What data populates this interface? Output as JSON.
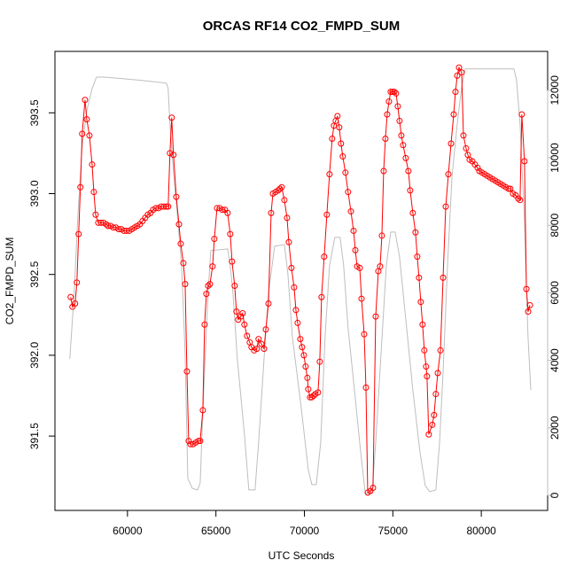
{
  "chart_data": {
    "type": "line",
    "title": "ORCAS RF14 CO2_FMPD_SUM",
    "x_label": "UTC Seconds",
    "y_label": "CO2_FMPD_SUM",
    "xlim": [
      55900,
      83750
    ],
    "xticks": [
      60000,
      65000,
      70000,
      75000,
      80000
    ],
    "ylim": [
      391.04,
      393.88
    ],
    "yticks": [
      391.5,
      {
        "value": 392,
        "label": "392.0"
      },
      392.5,
      {
        "value": 393,
        "label": "393.0"
      },
      393.5
    ],
    "y2lim": [
      -446,
      13150
    ],
    "y2ticks": [
      0,
      2000,
      4000,
      6000,
      8000,
      10000,
      12000
    ],
    "series": [
      {
        "color": "#bebebe",
        "axis": "y2",
        "markers": false,
        "x": [
          56740,
          56990,
          57190,
          57440,
          57700,
          58000,
          58250,
          58700,
          59800,
          60800,
          62200,
          62300,
          62400,
          62600,
          62810,
          63060,
          63260,
          63410,
          63660,
          63960,
          64110,
          64310,
          64560,
          64710,
          65660,
          65810,
          65960,
          66210,
          66610,
          66860,
          67210,
          67410,
          67670,
          67970,
          68320,
          68870,
          69070,
          69320,
          69820,
          70220,
          70420,
          70670,
          70920,
          71170,
          71420,
          71720,
          72020,
          72220,
          72470,
          72830,
          73180,
          73430,
          73580,
          73830,
          74030,
          74330,
          74630,
          74880,
          75130,
          75380,
          75730,
          76130,
          76530,
          76830,
          77080,
          77430,
          77640,
          77840,
          78090,
          78340,
          78640,
          78890,
          79090,
          81840,
          81990,
          82190,
          82440,
          82640,
          82800
        ],
        "values": [
          4040,
          6010,
          8240,
          10340,
          11390,
          12050,
          12390,
          12390,
          12340,
          12290,
          12210,
          12050,
          11000,
          9560,
          8370,
          6800,
          4170,
          500,
          210,
          160,
          370,
          3120,
          6010,
          7250,
          7300,
          6800,
          6010,
          4040,
          1810,
          160,
          160,
          1550,
          3650,
          6010,
          7380,
          7430,
          6540,
          4700,
          2600,
          760,
          320,
          320,
          1550,
          4700,
          6800,
          7640,
          7640,
          6800,
          4960,
          3120,
          1290,
          110,
          0,
          110,
          1550,
          4170,
          6800,
          7800,
          7800,
          7060,
          5220,
          3120,
          1290,
          290,
          110,
          160,
          1550,
          3650,
          6800,
          9420,
          11000,
          12100,
          12630,
          12630,
          12310,
          11000,
          8110,
          4700,
          3120
        ]
      },
      {
        "color": "#ff0000",
        "axis": "y",
        "markers": true,
        "x": [
          56790,
          56890,
          57040,
          57140,
          57240,
          57340,
          57440,
          57600,
          57700,
          57850,
          58000,
          58100,
          58200,
          58350,
          58500,
          58650,
          58800,
          58900,
          59050,
          59200,
          59350,
          59500,
          59650,
          59800,
          59950,
          60100,
          60250,
          60400,
          60550,
          60700,
          60850,
          61000,
          61150,
          61300,
          61450,
          61600,
          61750,
          61900,
          62050,
          62200,
          62300,
          62400,
          62500,
          62600,
          62760,
          62910,
          63010,
          63160,
          63260,
          63360,
          63460,
          63560,
          63710,
          63860,
          64010,
          64110,
          64260,
          64360,
          64460,
          64560,
          64660,
          64810,
          64910,
          65060,
          65210,
          65360,
          65510,
          65660,
          65810,
          65910,
          66060,
          66160,
          66260,
          66410,
          66510,
          66610,
          66760,
          66910,
          67010,
          67160,
          67310,
          67410,
          67570,
          67720,
          67820,
          67970,
          68120,
          68220,
          68370,
          68520,
          68620,
          68720,
          68870,
          69020,
          69120,
          69270,
          69420,
          69520,
          69620,
          69770,
          69870,
          69970,
          70070,
          70170,
          70220,
          70320,
          70420,
          70520,
          70620,
          70770,
          70870,
          70970,
          71120,
          71270,
          71420,
          71570,
          71670,
          71770,
          71870,
          71970,
          72070,
          72170,
          72320,
          72470,
          72630,
          72780,
          72880,
          72980,
          73130,
          73230,
          73380,
          73480,
          73580,
          73730,
          73880,
          74030,
          74180,
          74280,
          74380,
          74480,
          74580,
          74680,
          74780,
          74880,
          74980,
          75080,
          75180,
          75280,
          75380,
          75480,
          75580,
          75730,
          75880,
          75980,
          76130,
          76280,
          76380,
          76480,
          76580,
          76680,
          76780,
          76880,
          76930,
          77030,
          77230,
          77330,
          77430,
          77540,
          77690,
          77840,
          77990,
          78140,
          78290,
          78440,
          78540,
          78640,
          78740,
          78890,
          78990,
          79140,
          79240,
          79340,
          79490,
          79640,
          79790,
          79890,
          80040,
          80190,
          80340,
          80490,
          80640,
          80790,
          80940,
          81090,
          81240,
          81390,
          81540,
          81640,
          81790,
          81940,
          82090,
          82190,
          82290,
          82440,
          82550,
          82650,
          82750
        ],
        "values": [
          392.36,
          392.3,
          392.32,
          392.45,
          392.75,
          393.04,
          393.37,
          393.58,
          393.46,
          393.36,
          393.18,
          393.01,
          392.87,
          392.82,
          392.82,
          392.82,
          392.81,
          392.8,
          392.8,
          392.79,
          392.79,
          392.78,
          392.78,
          392.77,
          392.77,
          392.77,
          392.78,
          392.79,
          392.8,
          392.81,
          392.83,
          392.85,
          392.87,
          392.88,
          392.9,
          392.91,
          392.91,
          392.92,
          392.92,
          392.92,
          392.92,
          393.25,
          393.47,
          393.24,
          392.98,
          392.81,
          392.69,
          392.57,
          392.44,
          391.9,
          391.47,
          391.45,
          391.45,
          391.46,
          391.47,
          391.47,
          391.66,
          392.19,
          392.38,
          392.43,
          392.44,
          392.55,
          392.72,
          392.91,
          392.91,
          392.9,
          392.9,
          392.88,
          392.75,
          392.58,
          392.43,
          392.27,
          392.22,
          392.24,
          392.26,
          392.19,
          392.12,
          392.08,
          392.05,
          392.03,
          392.04,
          392.1,
          392.07,
          392.04,
          392.16,
          392.32,
          392.88,
          393.0,
          393.01,
          393.02,
          393.03,
          393.04,
          392.96,
          392.85,
          392.7,
          392.54,
          392.42,
          392.28,
          392.2,
          392.1,
          392.05,
          392.0,
          391.93,
          391.86,
          391.79,
          391.74,
          391.74,
          391.75,
          391.76,
          391.77,
          391.96,
          392.36,
          392.61,
          392.87,
          393.12,
          393.34,
          393.42,
          393.45,
          393.48,
          393.41,
          393.31,
          393.23,
          393.13,
          393.01,
          392.89,
          392.77,
          392.65,
          392.55,
          392.54,
          392.35,
          392.13,
          391.8,
          391.15,
          391.16,
          391.18,
          392.24,
          392.52,
          392.55,
          392.74,
          393.14,
          393.34,
          393.49,
          393.57,
          393.63,
          393.63,
          393.63,
          393.62,
          393.54,
          393.45,
          393.36,
          393.3,
          393.22,
          393.14,
          393.02,
          392.88,
          392.76,
          392.61,
          392.48,
          392.33,
          392.19,
          392.03,
          391.93,
          391.87,
          391.51,
          391.57,
          391.63,
          391.76,
          391.89,
          392.03,
          392.48,
          392.92,
          393.12,
          393.31,
          393.49,
          393.63,
          393.73,
          393.78,
          393.75,
          393.36,
          393.28,
          393.24,
          393.21,
          393.2,
          393.18,
          393.16,
          393.14,
          393.13,
          393.12,
          393.11,
          393.1,
          393.09,
          393.08,
          393.07,
          393.06,
          393.05,
          393.04,
          393.03,
          393.03,
          393.0,
          392.99,
          392.97,
          392.96,
          393.49,
          393.2,
          392.41,
          392.27,
          392.31
        ]
      }
    ]
  }
}
